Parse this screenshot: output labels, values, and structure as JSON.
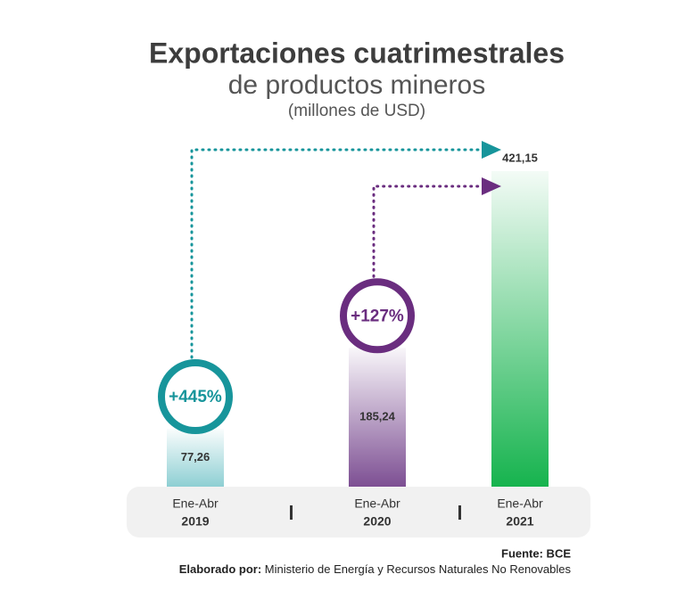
{
  "chart_data": {
    "type": "bar",
    "title": "Exportaciones cuatrimestrales",
    "subtitle": "de productos mineros",
    "unit": "(millones de USD)",
    "periods": [
      "Ene-Abr",
      "Ene-Abr",
      "Ene-Abr"
    ],
    "categories": [
      "2019",
      "2020",
      "2021"
    ],
    "values": [
      77.26,
      185.24,
      421.15
    ],
    "value_labels": [
      "77,26",
      "185,24",
      "421,15"
    ],
    "colors": [
      "#8ecfd3",
      "#7d4f93",
      "#16b34e"
    ],
    "annotations": [
      {
        "text": "+445%",
        "color": "#17959b"
      },
      {
        "text": "+127%",
        "color": "#6a2d7f"
      }
    ],
    "source": "Fuente: BCE",
    "credit_label": "Elaborado por:",
    "credit": "Ministerio de Energía y Recursos Naturales No Renovables"
  }
}
